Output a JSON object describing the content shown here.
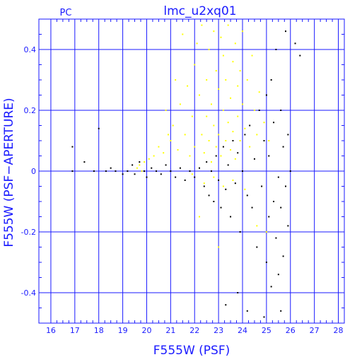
{
  "chart_data": {
    "type": "scatter",
    "title": "lmc_u2xq01",
    "corner_label": "PC",
    "xlabel": "F555W (PSF)",
    "ylabel": "F555W (PSF−APERTURE)",
    "xlim": [
      15.5,
      28.25
    ],
    "ylim": [
      -0.5,
      0.5
    ],
    "x_ticks": [
      16,
      17,
      18,
      19,
      20,
      21,
      22,
      23,
      24,
      25,
      26,
      27,
      28
    ],
    "y_ticks": [
      0.4,
      0.2,
      0,
      -0.2,
      -0.4
    ],
    "y_tick_labels": [
      "0.4",
      "0.2",
      "0",
      "-0.2",
      "-0.4"
    ],
    "grid": true,
    "colors": {
      "axis": "#1a1aff",
      "series_1": "#ffff00",
      "series_2": "#000000"
    },
    "series": [
      {
        "color": "#ffff00",
        "points": [
          [
            19.6,
            0.01
          ],
          [
            19.7,
            0.02
          ],
          [
            19.8,
            0.0
          ],
          [
            19.9,
            0.03
          ],
          [
            20.1,
            0.04
          ],
          [
            20.3,
            0.05
          ],
          [
            20.5,
            0.08
          ],
          [
            20.7,
            0.06
          ],
          [
            20.8,
            0.2
          ],
          [
            20.9,
            0.12
          ],
          [
            21.0,
            0.1
          ],
          [
            21.1,
            0.15
          ],
          [
            21.2,
            0.3
          ],
          [
            21.3,
            0.07
          ],
          [
            21.4,
            0.22
          ],
          [
            21.5,
            0.45
          ],
          [
            21.6,
            0.12
          ],
          [
            21.7,
            0.28
          ],
          [
            21.8,
            0.05
          ],
          [
            21.9,
            0.18
          ],
          [
            22.0,
            0.35
          ],
          [
            22.0,
            0.08
          ],
          [
            22.1,
            0.42
          ],
          [
            22.2,
            0.25
          ],
          [
            22.3,
            0.12
          ],
          [
            22.3,
            0.48
          ],
          [
            22.4,
            0.06
          ],
          [
            22.5,
            0.3
          ],
          [
            22.5,
            0.18
          ],
          [
            22.6,
            0.4
          ],
          [
            22.6,
            0.1
          ],
          [
            22.7,
            0.22
          ],
          [
            22.7,
            0.03
          ],
          [
            22.8,
            0.46
          ],
          [
            22.8,
            0.15
          ],
          [
            22.9,
            0.33
          ],
          [
            22.9,
            0.08
          ],
          [
            23.0,
            0.27
          ],
          [
            23.0,
            0.12
          ],
          [
            23.1,
            0.44
          ],
          [
            23.1,
            0.05
          ],
          [
            23.2,
            0.2
          ],
          [
            23.2,
            0.38
          ],
          [
            23.3,
            0.1
          ],
          [
            23.3,
            0.3
          ],
          [
            23.4,
            0.16
          ],
          [
            23.4,
            0.48
          ],
          [
            23.5,
            0.07
          ],
          [
            23.5,
            0.24
          ],
          [
            23.6,
            0.36
          ],
          [
            23.6,
            0.13
          ],
          [
            23.7,
            0.42
          ],
          [
            23.7,
            0.04
          ],
          [
            23.8,
            0.28
          ],
          [
            23.8,
            0.18
          ],
          [
            23.9,
            0.1
          ],
          [
            23.9,
            0.33
          ],
          [
            24.0,
            0.22
          ],
          [
            24.0,
            0.46
          ],
          [
            24.1,
            0.14
          ],
          [
            24.2,
            0.3
          ],
          [
            24.3,
            0.08
          ],
          [
            24.4,
            0.38
          ],
          [
            24.5,
            0.2
          ],
          [
            24.6,
            0.12
          ],
          [
            24.7,
            0.26
          ],
          [
            24.9,
            0.16
          ],
          [
            25.1,
            0.1
          ],
          [
            22.4,
            -0.04
          ],
          [
            22.8,
            -0.02
          ],
          [
            23.2,
            -0.05
          ],
          [
            23.6,
            -0.03
          ],
          [
            24.1,
            -0.06
          ],
          [
            21.9,
            -0.01
          ],
          [
            23.0,
            -0.25
          ],
          [
            24.6,
            -0.18
          ],
          [
            22.2,
            -0.15
          ],
          [
            25.0,
            -0.2
          ]
        ]
      },
      {
        "color": "#000000",
        "points": [
          [
            16.9,
            0.08
          ],
          [
            16.9,
            0.0
          ],
          [
            17.4,
            0.03
          ],
          [
            17.8,
            0.0
          ],
          [
            18.0,
            0.14
          ],
          [
            18.3,
            0.0
          ],
          [
            18.5,
            0.01
          ],
          [
            18.7,
            0.0
          ],
          [
            19.0,
            -0.01
          ],
          [
            19.2,
            0.0
          ],
          [
            19.4,
            0.02
          ],
          [
            19.5,
            -0.01
          ],
          [
            19.7,
            0.03
          ],
          [
            19.9,
            0.0
          ],
          [
            20.0,
            -0.02
          ],
          [
            20.2,
            0.01
          ],
          [
            20.4,
            0.0
          ],
          [
            20.6,
            -0.01
          ],
          [
            20.8,
            0.02
          ],
          [
            21.0,
            0.0
          ],
          [
            21.2,
            -0.02
          ],
          [
            21.4,
            0.01
          ],
          [
            21.6,
            -0.03
          ],
          [
            21.8,
            0.0
          ],
          [
            22.0,
            -0.02
          ],
          [
            22.2,
            0.01
          ],
          [
            22.4,
            -0.05
          ],
          [
            22.5,
            0.03
          ],
          [
            22.6,
            -0.08
          ],
          [
            22.7,
            0.0
          ],
          [
            22.8,
            -0.1
          ],
          [
            22.9,
            0.05
          ],
          [
            23.0,
            -0.03
          ],
          [
            23.1,
            -0.12
          ],
          [
            23.2,
            0.08
          ],
          [
            23.3,
            -0.06
          ],
          [
            23.4,
            0.02
          ],
          [
            23.5,
            -0.15
          ],
          [
            23.6,
            0.1
          ],
          [
            23.7,
            -0.04
          ],
          [
            23.8,
            0.06
          ],
          [
            23.9,
            -0.2
          ],
          [
            24.0,
            0.0
          ],
          [
            24.1,
            0.12
          ],
          [
            24.2,
            -0.08
          ],
          [
            24.3,
            0.15
          ],
          [
            24.4,
            -0.12
          ],
          [
            24.5,
            0.04
          ],
          [
            24.6,
            -0.25
          ],
          [
            24.7,
            0.2
          ],
          [
            24.8,
            -0.05
          ],
          [
            24.9,
            0.1
          ],
          [
            25.0,
            -0.3
          ],
          [
            25.0,
            0.25
          ],
          [
            25.1,
            -0.15
          ],
          [
            25.1,
            0.05
          ],
          [
            25.2,
            -0.38
          ],
          [
            25.2,
            0.3
          ],
          [
            25.3,
            -0.1
          ],
          [
            25.3,
            0.16
          ],
          [
            25.4,
            -0.22
          ],
          [
            25.4,
            0.4
          ],
          [
            25.5,
            -0.02
          ],
          [
            25.5,
            -0.34
          ],
          [
            25.6,
            0.2
          ],
          [
            25.6,
            -0.12
          ],
          [
            25.7,
            0.08
          ],
          [
            25.7,
            -0.28
          ],
          [
            25.8,
            -0.05
          ],
          [
            25.9,
            -0.18
          ],
          [
            25.9,
            0.12
          ],
          [
            26.0,
            0.0
          ],
          [
            26.2,
            0.42
          ],
          [
            26.4,
            0.38
          ],
          [
            24.2,
            -0.46
          ],
          [
            23.8,
            -0.4
          ],
          [
            24.9,
            -0.48
          ],
          [
            25.6,
            -0.46
          ],
          [
            23.3,
            -0.44
          ],
          [
            25.8,
            0.46
          ]
        ]
      }
    ]
  }
}
